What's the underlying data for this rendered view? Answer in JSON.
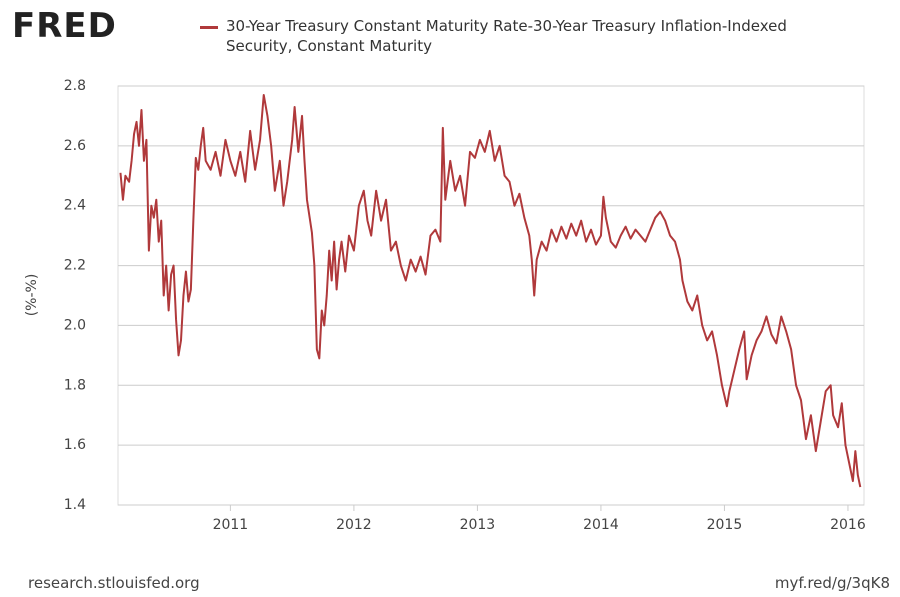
{
  "logo": "FRED",
  "footer_left": "research.stlouisfed.org",
  "footer_right": "myf.red/g/3qK8",
  "chart_data": {
    "type": "line",
    "y_label": "(%-%)",
    "grid": true,
    "xlim": [
      2010.09,
      2016.13
    ],
    "xticks": [
      2011,
      2012,
      2013,
      2014,
      2015,
      2016
    ],
    "ylim": [
      1.4,
      2.8
    ],
    "yticks": [
      1.4,
      1.6,
      1.8,
      {
        "value": 2,
        "label": "2.0"
      },
      2.2,
      2.4,
      2.6,
      2.8
    ],
    "x": [
      2010.11,
      2010.13,
      2010.15,
      2010.18,
      2010.2,
      2010.22,
      2010.24,
      2010.26,
      2010.28,
      2010.3,
      2010.32,
      2010.34,
      2010.36,
      2010.38,
      2010.4,
      2010.42,
      2010.44,
      2010.46,
      2010.48,
      2010.5,
      2010.52,
      2010.54,
      2010.56,
      2010.58,
      2010.6,
      2010.62,
      2010.64,
      2010.66,
      2010.68,
      2010.7,
      2010.72,
      2010.74,
      2010.76,
      2010.78,
      2010.8,
      2010.84,
      2010.88,
      2010.92,
      2010.96,
      2011.0,
      2011.04,
      2011.08,
      2011.12,
      2011.16,
      2011.2,
      2011.24,
      2011.27,
      2011.3,
      2011.33,
      2011.36,
      2011.4,
      2011.43,
      2011.46,
      2011.5,
      2011.52,
      2011.55,
      2011.58,
      2011.6,
      2011.62,
      2011.66,
      2011.68,
      2011.7,
      2011.72,
      2011.74,
      2011.76,
      2011.78,
      2011.8,
      2011.82,
      2011.84,
      2011.86,
      2011.88,
      2011.9,
      2011.93,
      2011.96,
      2012.0,
      2012.04,
      2012.08,
      2012.11,
      2012.14,
      2012.18,
      2012.22,
      2012.26,
      2012.3,
      2012.34,
      2012.38,
      2012.42,
      2012.46,
      2012.5,
      2012.54,
      2012.58,
      2012.62,
      2012.66,
      2012.7,
      2012.72,
      2012.74,
      2012.78,
      2012.82,
      2012.86,
      2012.9,
      2012.94,
      2012.98,
      2013.02,
      2013.06,
      2013.1,
      2013.14,
      2013.18,
      2013.22,
      2013.26,
      2013.3,
      2013.34,
      2013.38,
      2013.42,
      2013.44,
      2013.46,
      2013.48,
      2013.52,
      2013.56,
      2013.6,
      2013.64,
      2013.68,
      2013.72,
      2013.76,
      2013.8,
      2013.84,
      2013.88,
      2013.92,
      2013.96,
      2014.0,
      2014.02,
      2014.04,
      2014.08,
      2014.12,
      2014.16,
      2014.2,
      2014.24,
      2014.28,
      2014.32,
      2014.36,
      2014.4,
      2014.44,
      2014.48,
      2014.52,
      2014.56,
      2014.6,
      2014.64,
      2014.66,
      2014.7,
      2014.74,
      2014.78,
      2014.82,
      2014.86,
      2014.9,
      2014.94,
      2014.98,
      2015.02,
      2015.04,
      2015.08,
      2015.12,
      2015.16,
      2015.18,
      2015.22,
      2015.26,
      2015.3,
      2015.34,
      2015.38,
      2015.42,
      2015.46,
      2015.5,
      2015.54,
      2015.58,
      2015.62,
      2015.66,
      2015.7,
      2015.74,
      2015.78,
      2015.82,
      2015.86,
      2015.88,
      2015.92,
      2015.95,
      2015.98,
      2016.02,
      2016.04,
      2016.06,
      2016.08,
      2016.1
    ],
    "series": [
      {
        "name": "30-Year Treasury Constant Maturity Rate-30-Year Treasury Inflation-Indexed Security, Constant Maturity",
        "color": "#b0393b",
        "values": [
          2.51,
          2.42,
          2.5,
          2.48,
          2.55,
          2.64,
          2.68,
          2.6,
          2.72,
          2.55,
          2.62,
          2.25,
          2.4,
          2.36,
          2.42,
          2.28,
          2.35,
          2.1,
          2.2,
          2.05,
          2.17,
          2.2,
          2.02,
          1.9,
          1.95,
          2.1,
          2.18,
          2.08,
          2.12,
          2.35,
          2.56,
          2.52,
          2.6,
          2.66,
          2.55,
          2.52,
          2.58,
          2.5,
          2.62,
          2.55,
          2.5,
          2.58,
          2.48,
          2.65,
          2.52,
          2.62,
          2.77,
          2.7,
          2.6,
          2.45,
          2.55,
          2.4,
          2.48,
          2.62,
          2.73,
          2.58,
          2.7,
          2.55,
          2.42,
          2.31,
          2.2,
          1.92,
          1.89,
          2.05,
          2.0,
          2.1,
          2.25,
          2.15,
          2.28,
          2.12,
          2.22,
          2.28,
          2.18,
          2.3,
          2.25,
          2.4,
          2.45,
          2.35,
          2.3,
          2.45,
          2.35,
          2.42,
          2.25,
          2.28,
          2.2,
          2.15,
          2.22,
          2.18,
          2.23,
          2.17,
          2.3,
          2.32,
          2.28,
          2.66,
          2.42,
          2.55,
          2.45,
          2.5,
          2.4,
          2.58,
          2.56,
          2.62,
          2.58,
          2.65,
          2.55,
          2.6,
          2.5,
          2.48,
          2.4,
          2.44,
          2.36,
          2.3,
          2.22,
          2.1,
          2.22,
          2.28,
          2.25,
          2.32,
          2.28,
          2.33,
          2.29,
          2.34,
          2.3,
          2.35,
          2.28,
          2.32,
          2.27,
          2.3,
          2.43,
          2.36,
          2.28,
          2.26,
          2.3,
          2.33,
          2.29,
          2.32,
          2.3,
          2.28,
          2.32,
          2.36,
          2.38,
          2.35,
          2.3,
          2.28,
          2.22,
          2.15,
          2.08,
          2.05,
          2.1,
          2.0,
          1.95,
          1.98,
          1.9,
          1.8,
          1.73,
          1.78,
          1.85,
          1.92,
          1.98,
          1.82,
          1.9,
          1.95,
          1.98,
          2.03,
          1.97,
          1.94,
          2.03,
          1.98,
          1.92,
          1.8,
          1.75,
          1.62,
          1.7,
          1.58,
          1.68,
          1.78,
          1.8,
          1.7,
          1.66,
          1.74,
          1.6,
          1.52,
          1.48,
          1.58,
          1.5,
          1.46
        ]
      }
    ]
  }
}
